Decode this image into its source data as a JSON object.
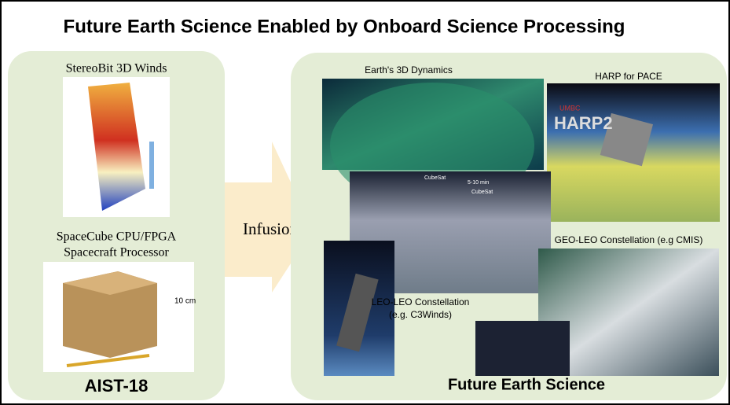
{
  "header": {
    "title": "Future Earth Science Enabled by Onboard Science Processing"
  },
  "left_panel": {
    "image_1_label": "StereoBit 3D Winds",
    "image_2_label_line_1": "SpaceCube CPU/FPGA",
    "image_2_label_line_2": "Spacecraft Processor",
    "dimension_label": "10 cm",
    "footer": "AIST-18"
  },
  "arrow": {
    "label": "Infusion"
  },
  "right_panel": {
    "images": [
      {
        "label": "Earth's 3D Dynamics"
      },
      {
        "label": "HARP for PACE",
        "logo_top": "UMBC",
        "logo": "HARP2"
      },
      {
        "label_1": "CubeSat",
        "label_2": "5-10 min",
        "label_3": "CubeSat"
      },
      {
        "label_line_1": "LEO-LEO Constellation",
        "label_line_2": "(e.g. C3Winds)"
      },
      {
        "label": "GEO-LEO Constellation (e.g CMIS)"
      }
    ],
    "footer": "Future Earth Science"
  }
}
